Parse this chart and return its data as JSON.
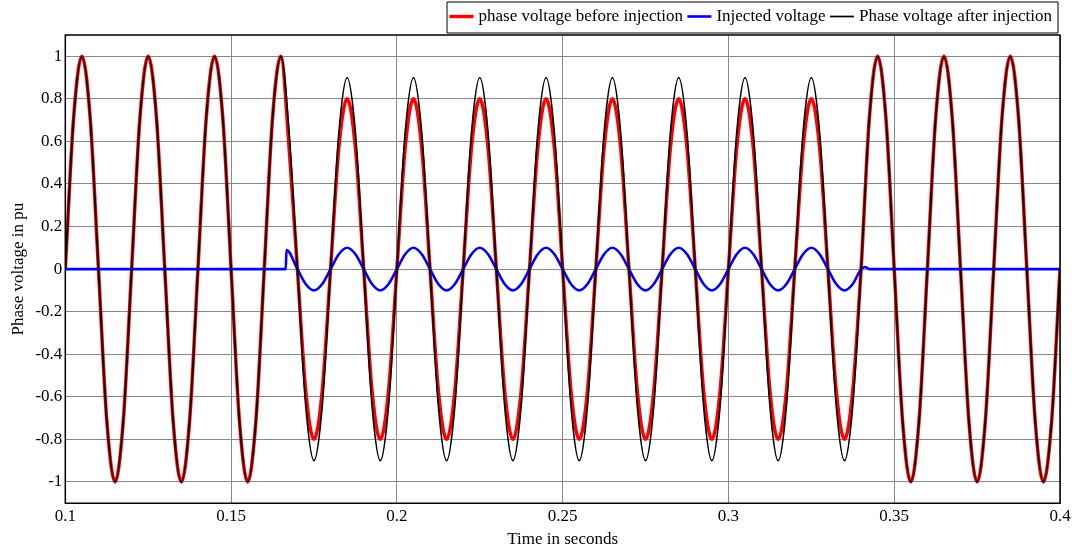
{
  "chart_data": {
    "type": "line",
    "xlabel": "Time in seconds",
    "ylabel": "Phase voltage in pu",
    "x": [
      0.1,
      0.1025,
      0.105,
      0.1075,
      0.11,
      0.1125,
      0.115,
      0.1175,
      0.12,
      0.1225,
      0.125,
      0.1275,
      0.13,
      0.1325,
      0.135,
      0.1375,
      0.14,
      0.1425,
      0.145,
      0.1475,
      0.15,
      0.1525,
      0.155,
      0.1575,
      0.16,
      0.1625,
      0.165,
      0.1675,
      0.17,
      0.1725,
      0.175,
      0.1775,
      0.18,
      0.1825,
      0.185,
      0.1875,
      0.19,
      0.1925,
      0.195,
      0.1975,
      0.2,
      0.2025,
      0.205,
      0.2075,
      0.21,
      0.2125,
      0.215,
      0.2175,
      0.22,
      0.2225,
      0.225,
      0.2275,
      0.23,
      0.2325,
      0.235,
      0.2375,
      0.24,
      0.2425,
      0.245,
      0.2475,
      0.25,
      0.2525,
      0.255,
      0.2575,
      0.26,
      0.2625,
      0.265,
      0.2675,
      0.27,
      0.2725,
      0.275,
      0.2775,
      0.28,
      0.2825,
      0.285,
      0.2875,
      0.29,
      0.2925,
      0.295,
      0.2975,
      0.3,
      0.3025,
      0.305,
      0.3075,
      0.31,
      0.3125,
      0.315,
      0.3175,
      0.32,
      0.3225,
      0.325,
      0.3275,
      0.33,
      0.3325,
      0.335,
      0.3375,
      0.34,
      0.3425,
      0.345,
      0.3475,
      0.35,
      0.3525,
      0.355,
      0.3575,
      0.36,
      0.3625,
      0.365,
      0.3675,
      0.37,
      0.3725,
      0.375,
      0.3775,
      0.38,
      0.3825,
      0.385,
      0.3875,
      0.39,
      0.3925,
      0.395,
      0.3975,
      0.4
    ],
    "series": [
      {
        "name": "phase voltage before injection",
        "color": "#ff0000",
        "values": [
          0,
          0.71,
          1,
          0.71,
          0,
          -0.71,
          -1,
          -0.71,
          0,
          0.71,
          1,
          0.71,
          0,
          -0.71,
          -1,
          -0.71,
          0,
          0.71,
          1,
          0.71,
          0,
          -0.71,
          -1,
          -0.71,
          0,
          0.71,
          1,
          0.57,
          0,
          -0.57,
          -0.8,
          -0.57,
          0,
          0.57,
          0.8,
          0.57,
          0,
          -0.57,
          -0.8,
          -0.57,
          0,
          0.57,
          0.8,
          0.57,
          0,
          -0.57,
          -0.8,
          -0.57,
          0,
          0.57,
          0.8,
          0.57,
          0,
          -0.57,
          -0.8,
          -0.57,
          0,
          0.57,
          0.8,
          0.57,
          0,
          -0.57,
          -0.8,
          -0.57,
          0,
          0.57,
          0.8,
          0.57,
          0,
          -0.57,
          -0.8,
          -0.57,
          0,
          0.57,
          0.8,
          0.57,
          0,
          -0.57,
          -0.8,
          -0.57,
          0,
          0.57,
          0.8,
          0.57,
          0,
          -0.57,
          -0.8,
          -0.57,
          0,
          0.57,
          0.8,
          0.57,
          0,
          -0.57,
          -0.8,
          -0.57,
          0,
          0.71,
          1,
          0.71,
          0,
          -0.71,
          -1,
          -0.71,
          0,
          0.71,
          1,
          0.71,
          0,
          -0.71,
          -1,
          -0.71,
          0,
          0.71,
          1,
          0.71,
          0,
          -0.71,
          -1,
          -0.71,
          0
        ]
      },
      {
        "name": "Injected voltage",
        "color": "#0000ff",
        "x": [
          0.1,
          0.1665,
          0.1667,
          0.17,
          0.1725,
          0.175,
          0.1775,
          0.18,
          0.1825,
          0.185,
          0.1875,
          0.19,
          0.1925,
          0.195,
          0.1975,
          0.2,
          0.2025,
          0.205,
          0.2075,
          0.21,
          0.2125,
          0.215,
          0.2175,
          0.22,
          0.2225,
          0.225,
          0.2275,
          0.23,
          0.2325,
          0.235,
          0.2375,
          0.24,
          0.2425,
          0.245,
          0.2475,
          0.25,
          0.2525,
          0.255,
          0.2575,
          0.26,
          0.2625,
          0.265,
          0.2675,
          0.27,
          0.2725,
          0.275,
          0.2775,
          0.28,
          0.2825,
          0.285,
          0.2875,
          0.29,
          0.2925,
          0.295,
          0.2975,
          0.3,
          0.3025,
          0.305,
          0.3075,
          0.31,
          0.3125,
          0.315,
          0.3175,
          0.32,
          0.3225,
          0.325,
          0.3275,
          0.33,
          0.3325,
          0.335,
          0.3375,
          0.34,
          0.3412,
          0.3425,
          0.4
        ],
        "values": [
          0,
          0,
          0.09,
          0,
          -0.07,
          -0.1,
          -0.07,
          0,
          0.07,
          0.1,
          0.07,
          0,
          -0.07,
          -0.1,
          -0.07,
          0,
          0.07,
          0.1,
          0.07,
          0,
          -0.07,
          -0.1,
          -0.07,
          0,
          0.07,
          0.1,
          0.07,
          0,
          -0.07,
          -0.1,
          -0.07,
          0,
          0.07,
          0.1,
          0.07,
          0,
          -0.07,
          -0.1,
          -0.07,
          0,
          0.07,
          0.1,
          0.07,
          0,
          -0.07,
          -0.1,
          -0.07,
          0,
          0.07,
          0.1,
          0.07,
          0,
          -0.07,
          -0.1,
          -0.07,
          0,
          0.07,
          0.1,
          0.07,
          0,
          -0.07,
          -0.1,
          -0.07,
          0,
          0.07,
          0.1,
          0.07,
          0,
          -0.07,
          -0.1,
          -0.07,
          0,
          0.01,
          0,
          0
        ]
      },
      {
        "name": "Phase voltage after injection",
        "color": "#000000",
        "values": [
          0,
          0.71,
          1,
          0.71,
          0,
          -0.71,
          -1,
          -0.71,
          0,
          0.71,
          1,
          0.71,
          0,
          -0.71,
          -1,
          -0.71,
          0,
          0.71,
          1,
          0.71,
          0,
          -0.71,
          -1,
          -0.71,
          0,
          0.71,
          1,
          0.64,
          0,
          -0.64,
          -0.9,
          -0.64,
          0,
          0.64,
          0.9,
          0.64,
          0,
          -0.64,
          -0.9,
          -0.64,
          0,
          0.64,
          0.9,
          0.64,
          0,
          -0.64,
          -0.9,
          -0.64,
          0,
          0.64,
          0.9,
          0.64,
          0,
          -0.64,
          -0.9,
          -0.64,
          0,
          0.64,
          0.9,
          0.64,
          0,
          -0.64,
          -0.9,
          -0.64,
          0,
          0.64,
          0.9,
          0.64,
          0,
          -0.64,
          -0.9,
          -0.64,
          0,
          0.64,
          0.9,
          0.64,
          0,
          -0.64,
          -0.9,
          -0.64,
          0,
          0.64,
          0.9,
          0.64,
          0,
          -0.64,
          -0.9,
          -0.64,
          0,
          0.64,
          0.9,
          0.64,
          0,
          -0.64,
          -0.9,
          -0.64,
          0,
          0.71,
          1,
          0.71,
          0,
          -0.71,
          -1,
          -0.71,
          0,
          0.71,
          1,
          0.71,
          0,
          -0.71,
          -1,
          -0.71,
          0,
          0.71,
          1,
          0.71,
          0,
          -0.71,
          -1,
          -0.71,
          0
        ]
      }
    ],
    "xlim": [
      0.1,
      0.4
    ],
    "xticks": [
      0.1,
      0.15,
      0.2,
      0.25,
      0.3,
      0.35,
      0.4
    ],
    "ylim": [
      -1.1,
      1.1
    ],
    "yticks": [
      -1,
      -0.8,
      -0.6,
      -0.4,
      -0.2,
      0,
      0.2,
      0.4,
      0.6,
      0.8,
      1
    ],
    "grid": true,
    "legend": "top right",
    "marker": "none",
    "line_style": "solid"
  }
}
